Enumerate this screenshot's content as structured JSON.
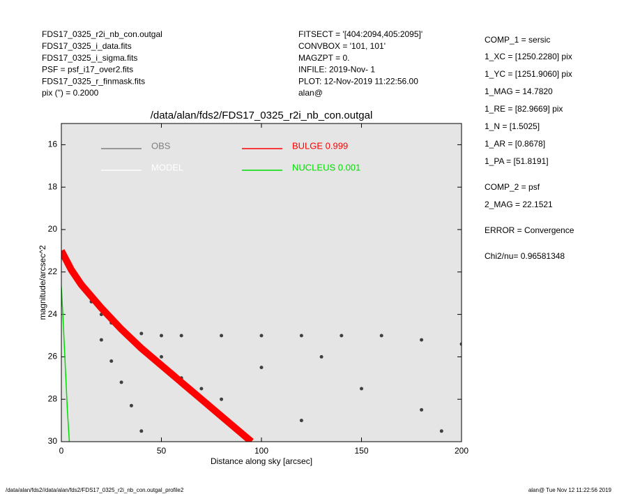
{
  "chart_data": {
    "type": "scatter",
    "title": "/data/alan/fds2/FDS17_0325_r2i_nb_con.outgal",
    "xlabel": "Distance along sky [arcsec]",
    "ylabel": "magnitude/arcsec^2",
    "xlim": [
      0,
      200
    ],
    "ylim": [
      30,
      15
    ],
    "xticks": [
      0,
      50,
      100,
      150,
      200
    ],
    "yticks": [
      16,
      18,
      20,
      22,
      24,
      26,
      28,
      30
    ],
    "background": "#e5e5e5",
    "header_left": [
      "FDS17_0325_r2i_nb_con.outgal",
      "FDS17_0325_i_data.fits",
      "FDS17_0325_i_sigma.fits",
      "PSF     = psf_i17_over2.fits",
      "FDS17_0325_r_finmask.fits",
      "pix (\") =  0.2000"
    ],
    "header_mid": [
      "FITSECT = '[404:2094,405:2095]'",
      "CONVBOX = '101, 101'",
      "MAGZPT  =               0.",
      "INFILE: 2019-Nov- 1",
      "PLOT: 12-Nov-2019 11:22:56.00",
      "alan@"
    ],
    "params": [
      "COMP_1  = sersic",
      "1_XC    = [1250.2280] pix",
      "1_YC    = [1251.9060] pix",
      "1_MAG   = 14.7820",
      "1_RE    = [82.9669] pix",
      "1_N     = [1.5025]",
      "1_AR    = [0.8678]",
      "1_PA    = [51.8191]",
      "COMP_2  = psf",
      "2_MAG   = 22.1521",
      "ERROR   = Convergence",
      "Chi2/nu=      0.96581348"
    ],
    "footer_left": "/data/alan/fds2//data/alan/fds2/FDS17_0325_r2i_nb_con.outgal_profile2",
    "footer_right": "alan@  Tue Nov 12 11:22:56 2019",
    "series": [
      {
        "name": "OBS",
        "color": "#7f7f7f",
        "mark_color": "#404040",
        "style": "points",
        "x": [
          2,
          5,
          10,
          15,
          20,
          25,
          30,
          40,
          50,
          60,
          80,
          100,
          120,
          140,
          160,
          180,
          200,
          20,
          25,
          30,
          35,
          40,
          50,
          60,
          70,
          80,
          100,
          120,
          130,
          150,
          180,
          190
        ],
        "values": [
          21.5,
          22.0,
          22.7,
          23.4,
          24.0,
          24.4,
          24.7,
          24.9,
          25.0,
          25.0,
          25.0,
          25.0,
          25.0,
          25.0,
          25.0,
          25.2,
          25.4,
          25.2,
          26.2,
          27.2,
          28.3,
          29.5,
          26.0,
          27.0,
          27.5,
          28.0,
          26.5,
          29.0,
          26.0,
          27.5,
          28.5,
          29.5
        ]
      },
      {
        "name": "MODEL",
        "color": "#ffffff",
        "style": "none"
      },
      {
        "name": "BULGE  0.999",
        "color": "#ff0000",
        "style": "band",
        "x": [
          0,
          5,
          10,
          20,
          30,
          40,
          50,
          60,
          70,
          80,
          90,
          95
        ],
        "values": [
          21.0,
          21.9,
          22.6,
          23.7,
          24.7,
          25.6,
          26.4,
          27.2,
          28.0,
          28.8,
          29.6,
          30.0
        ]
      },
      {
        "name": "NUCLEUS  0.001",
        "color": "#00dd00",
        "style": "line",
        "x": [
          0,
          1,
          2,
          3,
          4
        ],
        "values": [
          22.7,
          24.5,
          26.5,
          28.5,
          30.0
        ]
      }
    ]
  }
}
